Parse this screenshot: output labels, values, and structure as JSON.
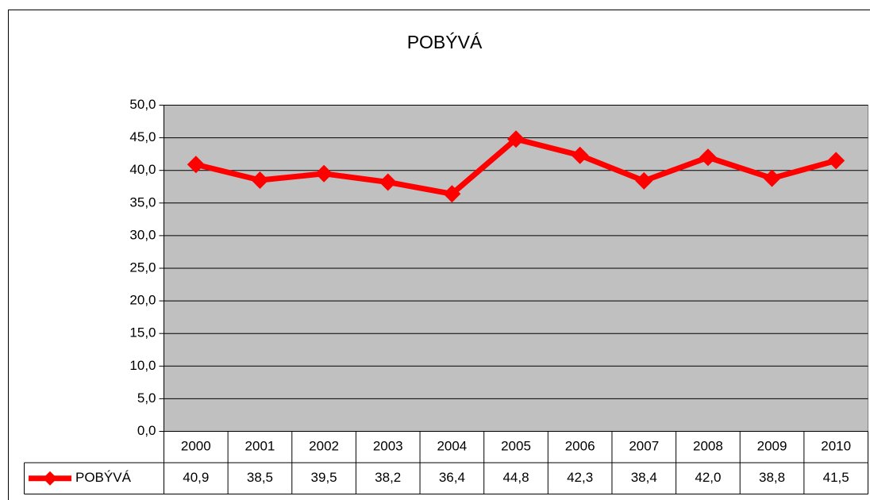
{
  "chart_data": {
    "type": "line",
    "title": "POBÝVÁ",
    "categories": [
      "2000",
      "2001",
      "2002",
      "2003",
      "2004",
      "2005",
      "2006",
      "2007",
      "2008",
      "2009",
      "2010"
    ],
    "series": [
      {
        "name": "POBÝVÁ",
        "color": "#ff0000",
        "values": [
          40.9,
          38.5,
          39.5,
          38.2,
          36.4,
          44.8,
          42.3,
          38.4,
          42.0,
          38.8,
          41.5
        ],
        "value_labels": [
          "40,9",
          "38,5",
          "39,5",
          "38,2",
          "36,4",
          "44,8",
          "42,3",
          "38,4",
          "42,0",
          "38,8",
          "41,5"
        ]
      }
    ],
    "ylim": [
      0,
      50
    ],
    "yticks": [
      {
        "value": 0,
        "label": "0,0"
      },
      {
        "value": 5,
        "label": "5,0"
      },
      {
        "value": 10,
        "label": "10,0"
      },
      {
        "value": 15,
        "label": "15,0"
      },
      {
        "value": 20,
        "label": "20,0"
      },
      {
        "value": 25,
        "label": "25,0"
      },
      {
        "value": 30,
        "label": "30,0"
      },
      {
        "value": 35,
        "label": "35,0"
      },
      {
        "value": 40,
        "label": "40,0"
      },
      {
        "value": 45,
        "label": "45,0"
      },
      {
        "value": 50,
        "label": "50,0"
      }
    ],
    "grid": true,
    "plot_background": "#c0c0c0"
  }
}
